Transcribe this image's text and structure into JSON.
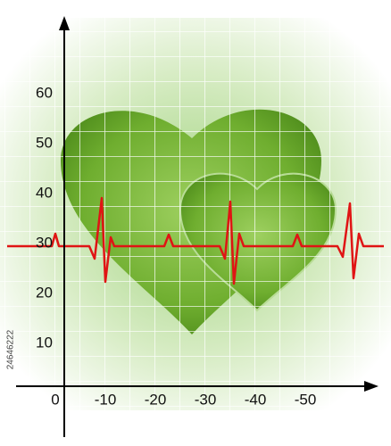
{
  "axes": {
    "y_labels": [
      60,
      50,
      40,
      30,
      20,
      10
    ],
    "x_labels": [
      0,
      -10,
      -20,
      -30,
      -40,
      -50
    ]
  },
  "watermark": "24646222"
}
